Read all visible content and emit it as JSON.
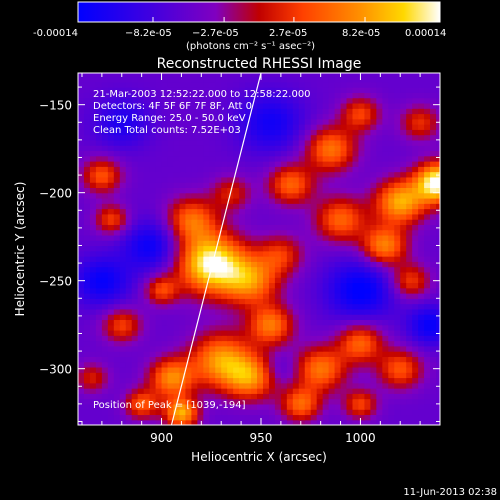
{
  "colorbar": {
    "tick_labels": [
      "-0.00014",
      "−8.2e-05",
      "−2.7e-05",
      "2.7e-05",
      "8.2e-05",
      "0.00014"
    ],
    "units": "(photons cm⁻² s⁻¹ asec⁻²)",
    "range": [
      -0.00014,
      0.00014
    ],
    "colors": [
      "#0000ff",
      "#7f00ff",
      "#c80000",
      "#ff5000",
      "#ffb400",
      "#ffffff"
    ]
  },
  "chart_data": {
    "type": "heatmap",
    "title": "Reconstructed RHESSI Image",
    "xlabel": "Heliocentric X (arcsec)",
    "ylabel": "Heliocentric Y (arcsec)",
    "xlim": [
      858,
      1040
    ],
    "ylim": [
      -332,
      -132
    ],
    "x_ticks": [
      900,
      950,
      1000
    ],
    "y_ticks": [
      -150,
      -200,
      -250,
      -300
    ],
    "annotations": [
      "21-Mar-2003 12:52:22.000 to 12:58:22.000",
      "Detectors: 4F 5F 6F 7F 8F, Att 0",
      "Energy Range: 25.0 - 50.0 keV",
      "Clean    Total counts: 7.52E+03"
    ],
    "peak_label": "Position of Peak = [1039,-194]",
    "peak_position": [
      1039,
      -194
    ],
    "limb_line": [
      [
        905,
        -332
      ],
      [
        950,
        -132
      ]
    ],
    "blobs": [
      {
        "x": 925,
        "y": -240,
        "amp": 1.0,
        "sigma": 12
      },
      {
        "x": 915,
        "y": -215,
        "amp": 0.55,
        "sigma": 9
      },
      {
        "x": 945,
        "y": -250,
        "amp": 0.6,
        "sigma": 10
      },
      {
        "x": 1039,
        "y": -194,
        "amp": 1.05,
        "sigma": 8
      },
      {
        "x": 1020,
        "y": -205,
        "amp": 0.75,
        "sigma": 9
      },
      {
        "x": 1012,
        "y": -230,
        "amp": 0.65,
        "sigma": 8
      },
      {
        "x": 985,
        "y": -175,
        "amp": 0.6,
        "sigma": 9
      },
      {
        "x": 870,
        "y": -190,
        "amp": 0.5,
        "sigma": 7
      },
      {
        "x": 875,
        "y": -215,
        "amp": 0.45,
        "sigma": 6
      },
      {
        "x": 990,
        "y": -215,
        "amp": 0.55,
        "sigma": 9
      },
      {
        "x": 965,
        "y": -195,
        "amp": 0.55,
        "sigma": 8
      },
      {
        "x": 955,
        "y": -275,
        "amp": 0.6,
        "sigma": 8
      },
      {
        "x": 930,
        "y": -295,
        "amp": 0.7,
        "sigma": 11
      },
      {
        "x": 905,
        "y": -305,
        "amp": 0.65,
        "sigma": 8
      },
      {
        "x": 945,
        "y": -305,
        "amp": 0.6,
        "sigma": 9
      },
      {
        "x": 980,
        "y": -300,
        "amp": 0.6,
        "sigma": 9
      },
      {
        "x": 1000,
        "y": -285,
        "amp": 0.55,
        "sigma": 8
      },
      {
        "x": 1020,
        "y": -300,
        "amp": 0.5,
        "sigma": 8
      },
      {
        "x": 1025,
        "y": -250,
        "amp": 0.45,
        "sigma": 7
      },
      {
        "x": 910,
        "y": -325,
        "amp": 0.75,
        "sigma": 6
      },
      {
        "x": 880,
        "y": -275,
        "amp": 0.45,
        "sigma": 7
      },
      {
        "x": 890,
        "y": -320,
        "amp": 0.5,
        "sigma": 6
      },
      {
        "x": 970,
        "y": -320,
        "amp": 0.55,
        "sigma": 7
      },
      {
        "x": 1000,
        "y": -155,
        "amp": 0.45,
        "sigma": 7
      },
      {
        "x": 1030,
        "y": -160,
        "amp": 0.4,
        "sigma": 7
      },
      {
        "x": 900,
        "y": -255,
        "amp": 0.45,
        "sigma": 6
      },
      {
        "x": 960,
        "y": -235,
        "amp": 0.4,
        "sigma": 8
      },
      {
        "x": 1000,
        "y": -320,
        "amp": 0.45,
        "sigma": 6
      },
      {
        "x": 865,
        "y": -305,
        "amp": 0.35,
        "sigma": 6
      },
      {
        "x": 935,
        "y": -200,
        "amp": 0.35,
        "sigma": 7
      },
      {
        "x": 895,
        "y": -230,
        "amp": -0.4,
        "sigma": 10
      },
      {
        "x": 955,
        "y": -160,
        "amp": -0.35,
        "sigma": 12
      },
      {
        "x": 1000,
        "y": -255,
        "amp": -0.45,
        "sigma": 12
      },
      {
        "x": 870,
        "y": -250,
        "amp": -0.4,
        "sigma": 10
      },
      {
        "x": 1035,
        "y": -275,
        "amp": -0.4,
        "sigma": 8
      },
      {
        "x": 880,
        "y": -160,
        "amp": -0.3,
        "sigma": 10
      },
      {
        "x": 960,
        "y": -300,
        "amp": -0.15,
        "sigma": 6
      }
    ]
  },
  "footer": {
    "timestamp": "11-Jun-2013 02:38"
  }
}
